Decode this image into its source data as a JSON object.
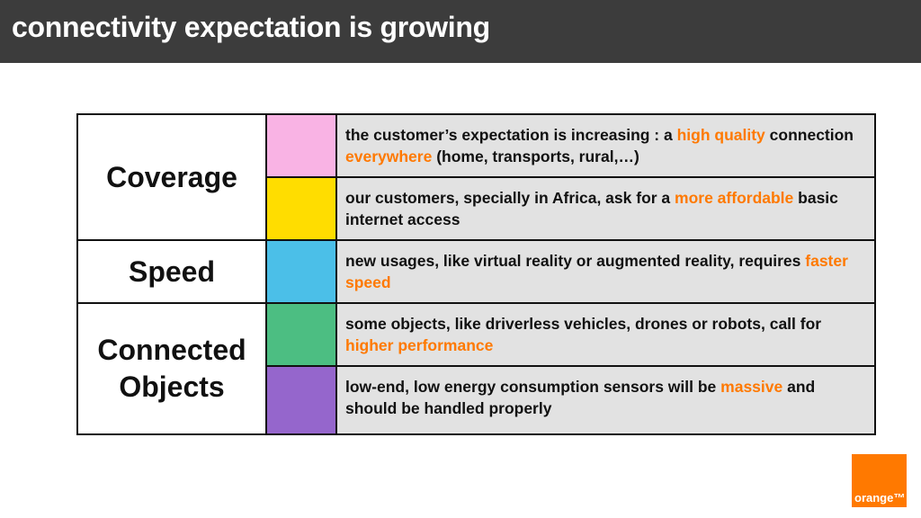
{
  "header": {
    "title": "connectivity expectation is growing"
  },
  "table": {
    "groups": [
      {
        "label": "Coverage",
        "items": [
          {
            "color": "#f9b3e4",
            "segments": [
              {
                "text": "the customer’s expectation is increasing : a "
              },
              {
                "text": "high quality",
                "emphasis": true
              },
              {
                "text": " connection "
              },
              {
                "text": "everywhere",
                "emphasis": true
              },
              {
                "text": " (home, transports, rural,…)"
              }
            ]
          },
          {
            "color": "#ffdd00",
            "segments": [
              {
                "text": "our customers, specially in Africa, ask for a "
              },
              {
                "text": "more affordable",
                "emphasis": true
              },
              {
                "text": " basic internet access"
              }
            ]
          }
        ]
      },
      {
        "label": "Speed",
        "items": [
          {
            "color": "#4bbfe8",
            "segments": [
              {
                "text": "new usages, like virtual reality or augmented reality, requires "
              },
              {
                "text": "faster speed",
                "emphasis": true
              }
            ]
          }
        ]
      },
      {
        "label": "Connected Objects",
        "items": [
          {
            "color": "#4cbe82",
            "segments": [
              {
                "text": "some objects, like driverless vehicles, drones or robots, call for "
              },
              {
                "text": "higher performance",
                "emphasis": true
              }
            ]
          },
          {
            "color": "#9566cc",
            "segments": [
              {
                "text": "low-end, low energy consumption sensors will be "
              },
              {
                "text": "massive",
                "emphasis": true
              },
              {
                "text": " and should be handled properly"
              }
            ]
          }
        ]
      }
    ]
  },
  "logo": {
    "text": "orange™",
    "emphasis_color": "#ff7900"
  }
}
